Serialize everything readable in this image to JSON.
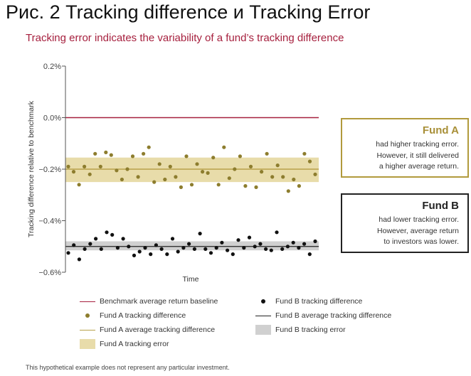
{
  "page": {
    "title": "Рис. 2 Tracking difference и Tracking Error",
    "subtitle": "Tracking error indicates the variability of a fund’s tracking difference",
    "footnote": "This hypothetical example does not represent any particular investment."
  },
  "colors": {
    "benchmark": "#a6203e",
    "fund_a": "#8d7d2e",
    "fund_a_avg": "#b8a24a",
    "fund_a_band": "#e8dcaa",
    "fund_b": "#111111",
    "fund_b_avg": "#222222",
    "fund_b_band": "#d0d0d0",
    "axis": "#555555"
  },
  "fund_a_box": {
    "title": "Fund A",
    "lines": [
      "had higher tracking error.",
      "However, it still delivered",
      "a higher average return."
    ]
  },
  "fund_b_box": {
    "title": "Fund B",
    "lines": [
      "had lower tracking error.",
      "However, average return",
      "to investors was lower."
    ]
  },
  "legend": {
    "benchmark": "Benchmark average return baseline",
    "fund_a_points": "Fund A tracking difference",
    "fund_a_avg": "Fund A average tracking difference",
    "fund_a_error": "Fund A tracking error",
    "fund_b_points": "Fund B tracking difference",
    "fund_b_avg": "Fund B average tracking difference",
    "fund_b_error": "Fund B tracking error"
  },
  "chart_data": {
    "type": "scatter",
    "xlabel": "Time",
    "ylabel": "Tracking difference relative to benchmark",
    "ylim": [
      -0.6,
      0.2
    ],
    "yticks": [
      0.2,
      0.0,
      -0.2,
      -0.4,
      -0.6
    ],
    "ytick_labels": [
      "0.2%",
      "0.0%",
      "−0.2%",
      "−0.4%",
      "−0.6%"
    ],
    "grid": false,
    "legend_position": "bottom",
    "benchmark": 0.0,
    "fund_a": {
      "average": -0.2,
      "band": [
        -0.25,
        -0.155
      ],
      "values": [
        -0.19,
        -0.21,
        -0.26,
        -0.19,
        -0.22,
        -0.14,
        -0.19,
        -0.135,
        -0.145,
        -0.205,
        -0.24,
        -0.2,
        -0.15,
        -0.23,
        -0.14,
        -0.115,
        -0.25,
        -0.18,
        -0.24,
        -0.19,
        -0.23,
        -0.27,
        -0.15,
        -0.26,
        -0.18,
        -0.21,
        -0.215,
        -0.155,
        -0.26,
        -0.115,
        -0.235,
        -0.2,
        -0.15,
        -0.265,
        -0.19,
        -0.27,
        -0.21,
        -0.14,
        -0.23,
        -0.185,
        -0.23,
        -0.285,
        -0.24,
        -0.265,
        -0.14,
        -0.17,
        -0.22
      ]
    },
    "fund_b": {
      "average": -0.5,
      "band": [
        -0.515,
        -0.48
      ],
      "values": [
        -0.525,
        -0.495,
        -0.55,
        -0.51,
        -0.49,
        -0.47,
        -0.51,
        -0.445,
        -0.455,
        -0.505,
        -0.47,
        -0.5,
        -0.535,
        -0.52,
        -0.505,
        -0.53,
        -0.495,
        -0.51,
        -0.53,
        -0.47,
        -0.52,
        -0.505,
        -0.49,
        -0.51,
        -0.45,
        -0.51,
        -0.525,
        -0.505,
        -0.485,
        -0.515,
        -0.53,
        -0.475,
        -0.505,
        -0.465,
        -0.5,
        -0.49,
        -0.51,
        -0.515,
        -0.445,
        -0.51,
        -0.5,
        -0.485,
        -0.505,
        -0.49,
        -0.53,
        -0.48
      ]
    }
  }
}
